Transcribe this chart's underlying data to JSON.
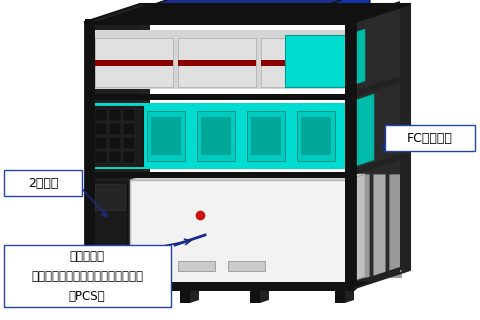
{
  "background_color": "#ffffff",
  "label_fc_stack": "FCスタック",
  "label_battery": "2次電池",
  "label_pcs": "運転制御盤\nパワーコンディショニングシステム\n（PCS）",
  "arrow_color": "#1a2a7a",
  "label_box_edge": "#2244aa",
  "frame_dark": "#111111",
  "frame_mid": "#222222",
  "frame_gray": "#333333",
  "top_blue_dark": "#1a2d8a",
  "top_blue_light": "#2244bb",
  "top_blue_top": "#1133aa",
  "cyan_main": "#00ddd0",
  "cyan_dark": "#009990",
  "cyan_mid": "#00bbaa",
  "white_panel_front": "#e8e8e8",
  "white_panel_top": "#d8d8d8",
  "white_panel_side": "#b8b8b8",
  "red_dot": "#cc1111",
  "shelf_beam": "#1a1a1a",
  "dark_machine": "#1c1c1c",
  "dark_machine2": "#282828",
  "gray_side_panel": "#999999",
  "gray_side_panel2": "#aaaaaa",
  "black_post": "#151515",
  "red_stripe": "#880000",
  "top_shelf_gray": "#cccccc",
  "top_shelf_white": "#e0e0e0"
}
